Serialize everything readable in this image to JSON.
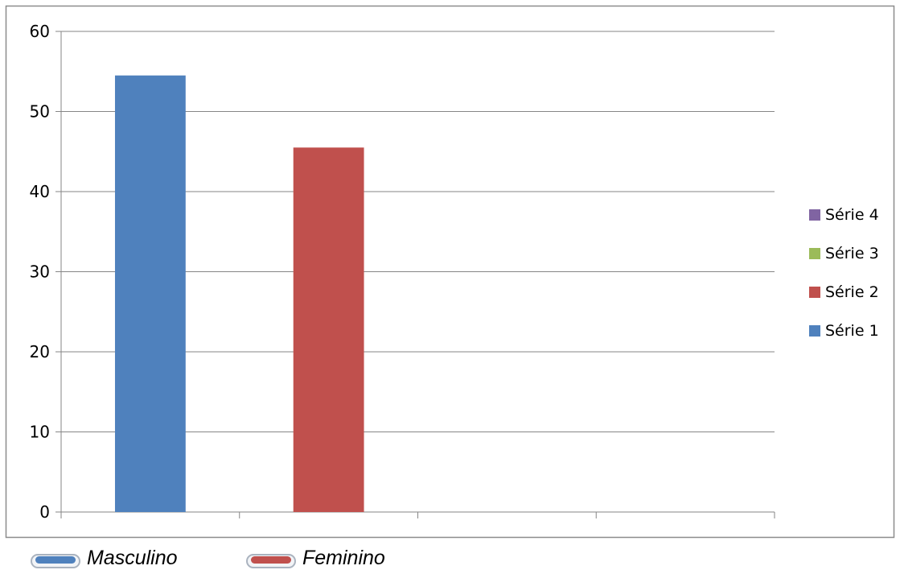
{
  "chart_data": {
    "type": "bar",
    "categories": [
      "",
      "",
      "",
      ""
    ],
    "series": [
      {
        "name": "Série 1",
        "color": "#4f81bd",
        "values": [
          54.5,
          null,
          null,
          null
        ]
      },
      {
        "name": "Série 2",
        "color": "#c0504d",
        "values": [
          null,
          45.5,
          null,
          null
        ]
      },
      {
        "name": "Série 3",
        "color": "#9bbb59",
        "values": [
          null,
          null,
          null,
          null
        ]
      },
      {
        "name": "Série 4",
        "color": "#8064a2",
        "values": [
          null,
          null,
          null,
          null
        ]
      }
    ],
    "yticks": [
      "0",
      "10",
      "20",
      "30",
      "40",
      "50",
      "60"
    ],
    "ylim": [
      0,
      60
    ],
    "grid": true,
    "legend_position": "right",
    "legend_order": [
      "Série 4",
      "Série 3",
      "Série 2",
      "Série 1"
    ]
  },
  "captions": [
    {
      "label": "Masculino",
      "color": "#4f81bd"
    },
    {
      "label": "Feminino",
      "color": "#c0504d"
    }
  ]
}
